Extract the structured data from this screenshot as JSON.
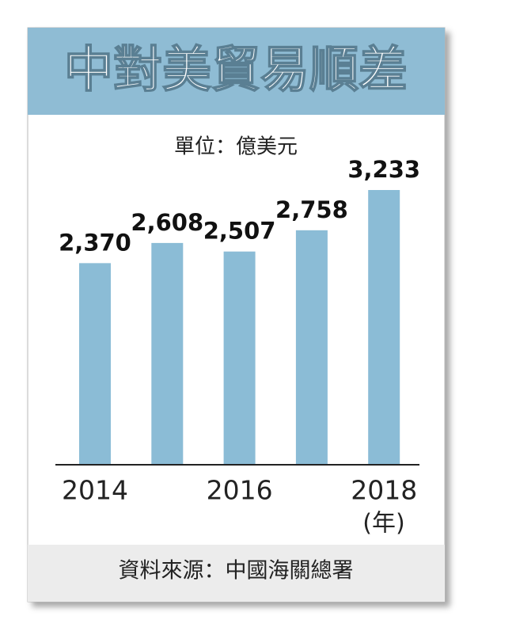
{
  "chart_data": {
    "type": "bar",
    "title": "中對美貿易順差",
    "subtitle": "單位：億美元",
    "x_label": "(年)",
    "source": "資料來源：中國海關總署",
    "categories": [
      "2014",
      null,
      "2016",
      null,
      "2018"
    ],
    "values": [
      2370,
      2608,
      2507,
      2758,
      3233
    ],
    "value_labels": [
      "2,370",
      "2,608",
      "2,507",
      "2,758",
      "3,233"
    ],
    "color": "#8bbcd6"
  }
}
